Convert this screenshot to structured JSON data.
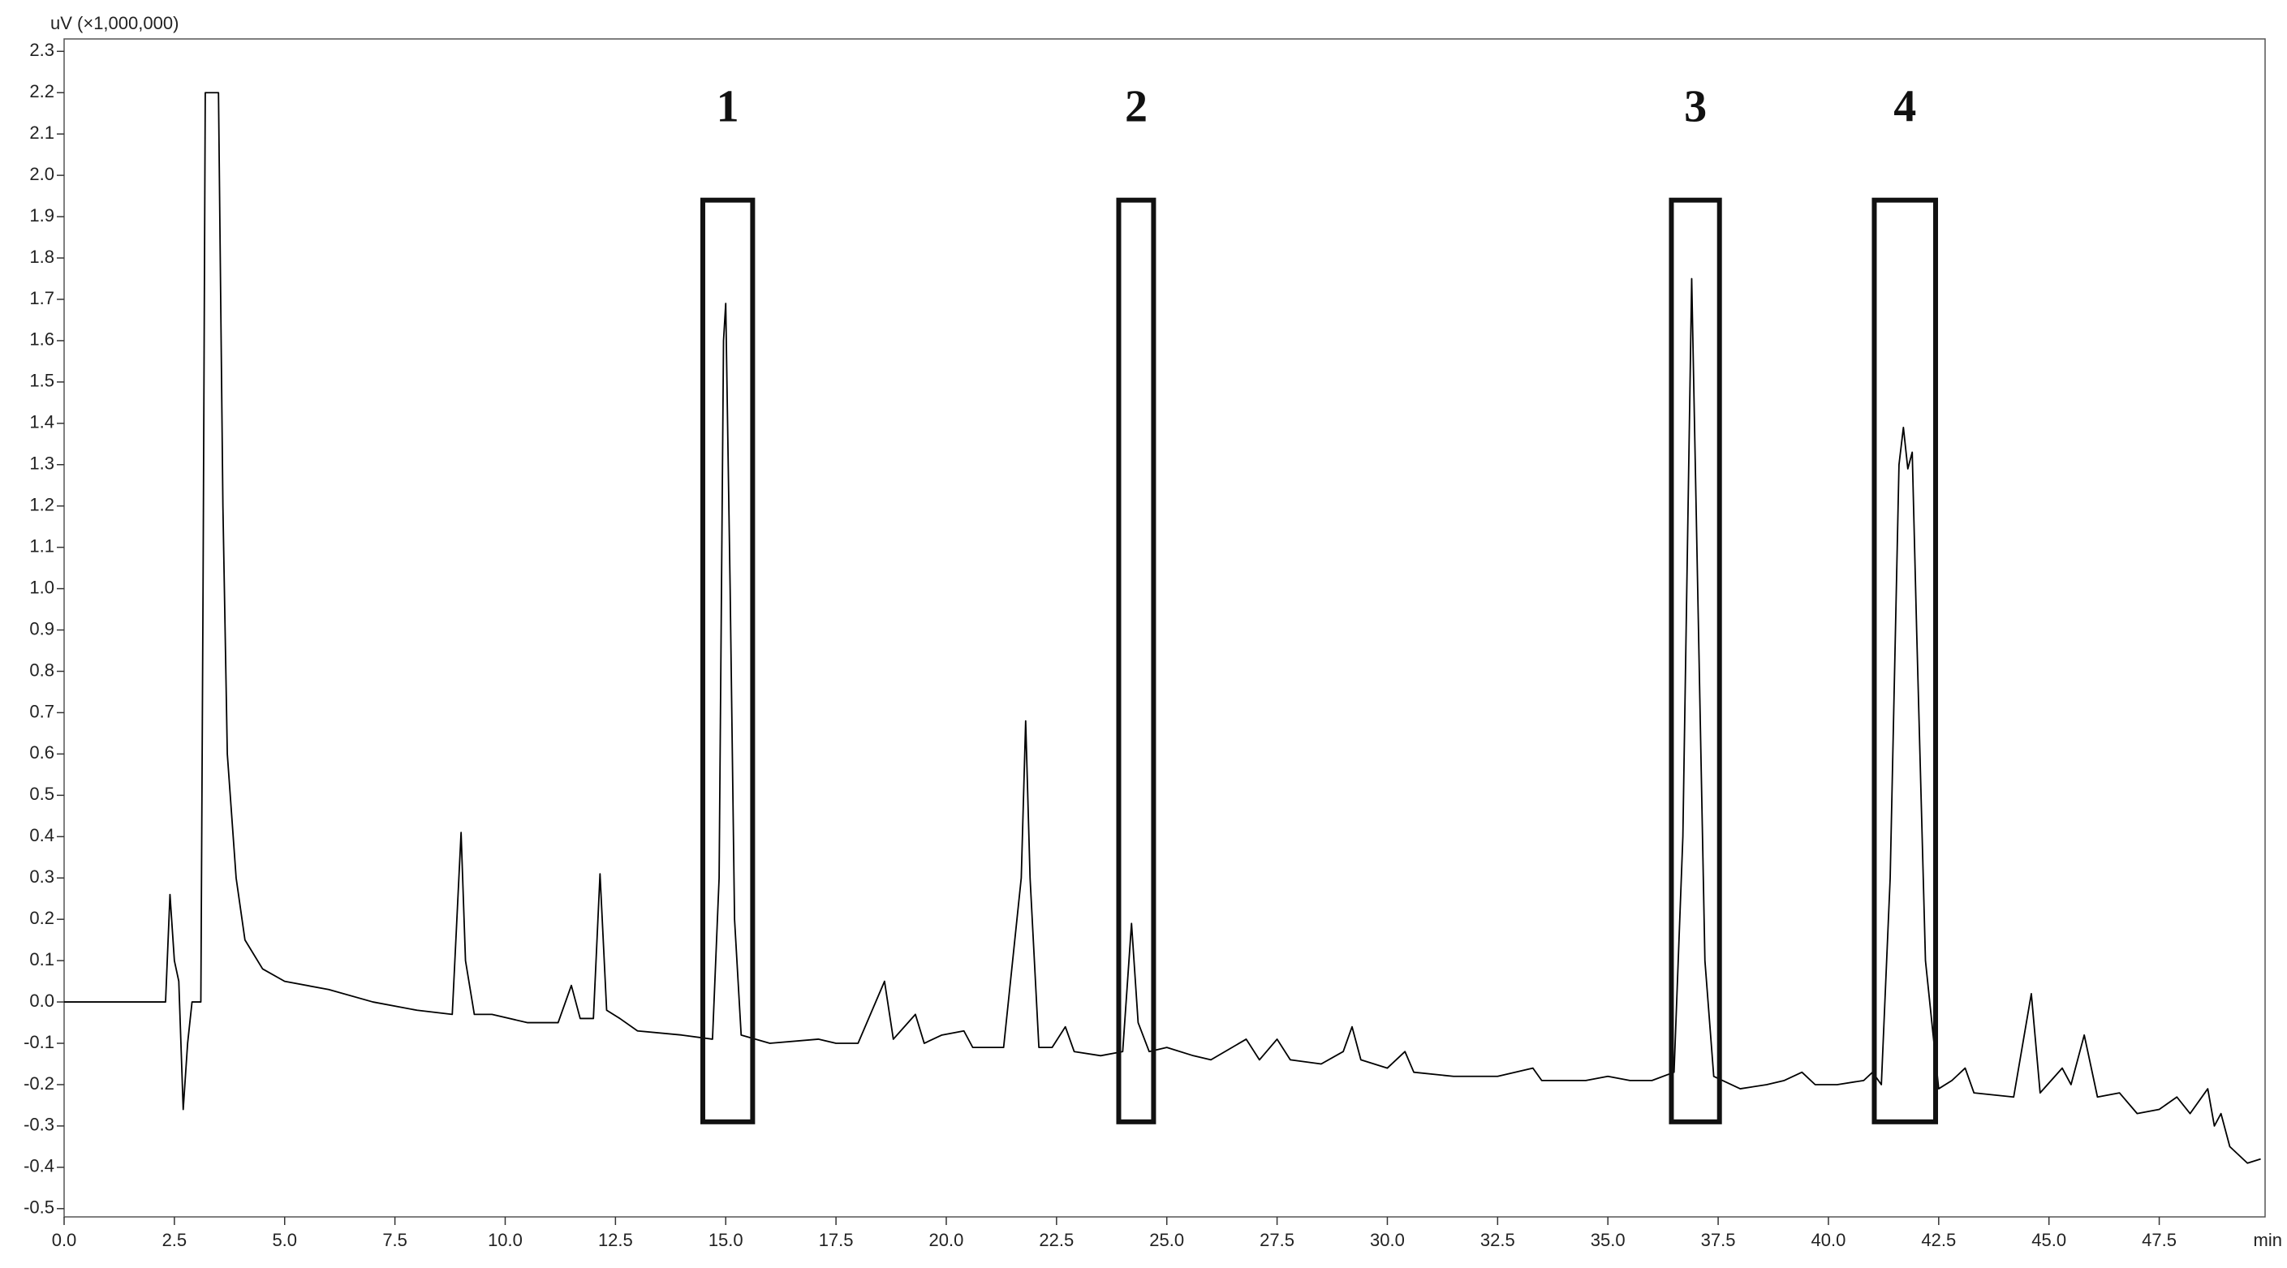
{
  "chart_data": {
    "type": "line",
    "y_label": "uV (×1,000,000)",
    "x_label": "min",
    "xlim": [
      0,
      49.9
    ],
    "ylim": [
      -0.52,
      2.33
    ],
    "xticks": [
      {
        "value": 0,
        "label": "0.0"
      },
      2.5,
      {
        "value": 5,
        "label": "5.0"
      },
      7.5,
      {
        "value": 10,
        "label": "10.0"
      },
      12.5,
      {
        "value": 15,
        "label": "15.0"
      },
      17.5,
      {
        "value": 20,
        "label": "20.0"
      },
      22.5,
      {
        "value": 25,
        "label": "25.0"
      },
      27.5,
      {
        "value": 30,
        "label": "30.0"
      },
      32.5,
      {
        "value": 35,
        "label": "35.0"
      },
      37.5,
      {
        "value": 40,
        "label": "40.0"
      },
      42.5,
      {
        "value": 45,
        "label": "45.0"
      },
      47.5
    ],
    "yticks": [
      -0.5,
      -0.4,
      -0.3,
      -0.2,
      -0.1,
      {
        "value": 0,
        "label": "0.0"
      },
      0.1,
      0.2,
      0.3,
      0.4,
      0.5,
      0.6,
      0.7,
      0.8,
      0.9,
      {
        "value": 1,
        "label": "1.0"
      },
      1.1,
      1.2,
      1.3,
      1.4,
      1.5,
      1.6,
      1.7,
      1.8,
      1.9,
      {
        "value": 2,
        "label": "2.0"
      },
      2.1,
      2.2,
      2.3
    ],
    "series": [
      {
        "color": "#000000",
        "x": [
          0,
          1,
          2,
          2.3,
          2.4,
          2.5,
          2.6,
          2.7,
          2.8,
          2.9,
          3.1,
          3.15,
          3.2,
          3.5,
          3.6,
          3.7,
          3.9,
          4.1,
          4.5,
          5,
          6,
          7,
          8,
          8.8,
          9,
          9.1,
          9.3,
          9.7,
          10.5,
          11.2,
          11.5,
          11.7,
          12,
          12.15,
          12.3,
          12.6,
          13,
          14,
          14.7,
          14.85,
          14.95,
          15,
          15.1,
          15.2,
          15.35,
          16,
          17.1,
          17.5,
          18,
          18.6,
          18.8,
          19.3,
          19.5,
          19.9,
          20.4,
          20.6,
          21.3,
          21.7,
          21.8,
          21.9,
          22.1,
          22.4,
          22.7,
          22.9,
          23.5,
          24,
          24.2,
          24.35,
          24.6,
          25,
          25.6,
          26,
          26.8,
          27.1,
          27.5,
          27.8,
          28.5,
          29,
          29.2,
          29.4,
          30,
          30.4,
          30.6,
          31.5,
          32.5,
          33.3,
          33.5,
          34.5,
          35,
          35.5,
          36,
          36.5,
          36.7,
          36.9,
          37,
          37.2,
          37.4,
          38,
          38.6,
          39,
          39.4,
          39.7,
          40.2,
          40.8,
          41,
          41.2,
          41.4,
          41.6,
          41.7,
          41.8,
          41.9,
          42,
          42.2,
          42.5,
          42.8,
          43.1,
          43.3,
          44.2,
          44.6,
          44.8,
          45.3,
          45.5,
          45.8,
          46.1,
          46.6,
          47,
          47.5,
          47.9,
          48.2,
          48.6,
          48.75,
          48.9,
          49.1,
          49.5,
          49.8
        ],
        "values": [
          0,
          0,
          0,
          0,
          0.26,
          0.1,
          0.05,
          -0.26,
          -0.1,
          0,
          0,
          1.0,
          2.2,
          2.2,
          1.2,
          0.6,
          0.3,
          0.15,
          0.08,
          0.05,
          0.03,
          0,
          -0.02,
          -0.03,
          0.41,
          0.1,
          -0.03,
          -0.03,
          -0.05,
          -0.05,
          0.04,
          -0.04,
          -0.04,
          0.31,
          -0.02,
          -0.04,
          -0.07,
          -0.08,
          -0.09,
          0.3,
          1.6,
          1.69,
          1.0,
          0.2,
          -0.08,
          -0.1,
          -0.09,
          -0.1,
          -0.1,
          0.05,
          -0.09,
          -0.03,
          -0.1,
          -0.08,
          -0.07,
          -0.11,
          -0.11,
          0.3,
          0.68,
          0.3,
          -0.11,
          -0.11,
          -0.06,
          -0.12,
          -0.13,
          -0.12,
          0.19,
          -0.05,
          -0.12,
          -0.11,
          -0.13,
          -0.14,
          -0.09,
          -0.14,
          -0.09,
          -0.14,
          -0.15,
          -0.12,
          -0.06,
          -0.14,
          -0.16,
          -0.12,
          -0.17,
          -0.18,
          -0.18,
          -0.16,
          -0.19,
          -0.19,
          -0.18,
          -0.19,
          -0.19,
          -0.17,
          0.4,
          1.75,
          1.2,
          0.1,
          -0.18,
          -0.21,
          -0.2,
          -0.19,
          -0.17,
          -0.2,
          -0.2,
          -0.19,
          -0.17,
          -0.2,
          0.3,
          1.3,
          1.39,
          1.29,
          1.33,
          0.9,
          0.1,
          -0.21,
          -0.19,
          -0.16,
          -0.22,
          -0.23,
          0.02,
          -0.22,
          -0.16,
          -0.2,
          -0.08,
          -0.23,
          -0.22,
          -0.27,
          -0.26,
          -0.23,
          -0.27,
          -0.21,
          -0.3,
          -0.27,
          -0.35,
          -0.39,
          -0.38
        ]
      }
    ],
    "annotations": [
      {
        "text": "1",
        "x": [
          14.48,
          15.61
        ],
        "y": [
          -0.29,
          1.94
        ]
      },
      {
        "text": "2",
        "x": [
          23.91,
          24.7
        ],
        "y": [
          -0.29,
          1.94
        ]
      },
      {
        "text": "3",
        "x": [
          36.44,
          37.53
        ],
        "y": [
          -0.29,
          1.94
        ]
      },
      {
        "text": "4",
        "x": [
          41.04,
          42.43
        ],
        "y": [
          -0.29,
          1.94
        ]
      }
    ]
  }
}
